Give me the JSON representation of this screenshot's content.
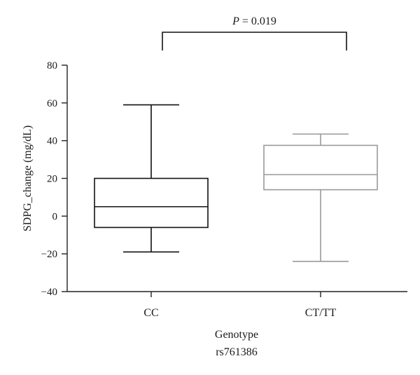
{
  "chart_data": {
    "type": "box",
    "xlabel": "Genotype",
    "xlabel_sub": "rs761386",
    "ylabel": "SDPG_change (mg/dL)",
    "ylim": [
      -40,
      80
    ],
    "yticks": [
      -40,
      -20,
      0,
      20,
      40,
      60,
      80
    ],
    "categories": [
      "CC",
      "CT/TT"
    ],
    "boxes": [
      {
        "category": "CC",
        "min": -19,
        "q1": -6,
        "median": 5,
        "q3": 20,
        "max": 59,
        "color": "#111111"
      },
      {
        "category": "CT/TT",
        "min": -24,
        "q1": 14,
        "median": 22,
        "q3": 37.5,
        "max": 43.5,
        "color": "#9a9a9a"
      }
    ],
    "annotation": {
      "italic": "P",
      "text": " = 0.019"
    }
  }
}
